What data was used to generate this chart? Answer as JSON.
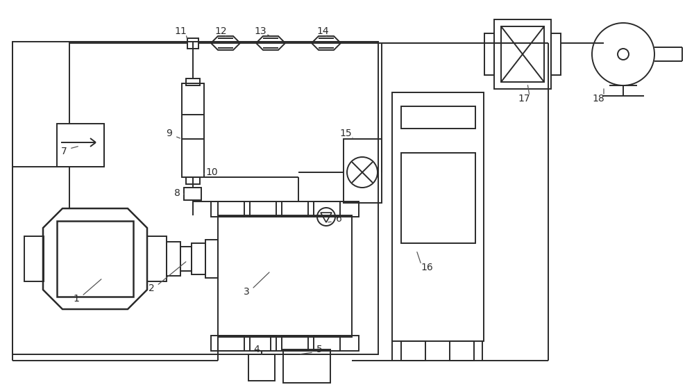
{
  "bg_color": "#ffffff",
  "line_color": "#2a2a2a",
  "lw": 1.4,
  "figsize": [
    10.0,
    5.57
  ],
  "dpi": 100
}
